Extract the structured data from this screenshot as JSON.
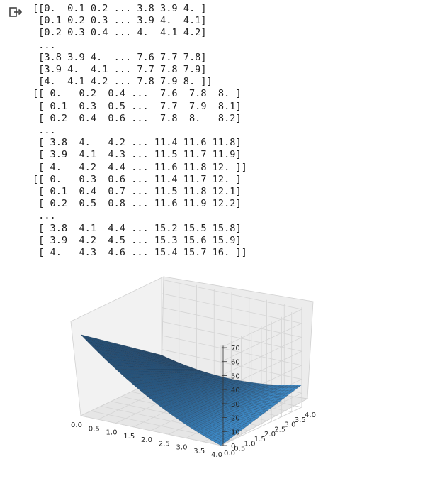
{
  "output": {
    "icon": "output-arrow-icon",
    "text": "[[0.  0.1 0.2 ... 3.8 3.9 4. ]\n [0.1 0.2 0.3 ... 3.9 4.  4.1]\n [0.2 0.3 0.4 ... 4.  4.1 4.2]\n ...\n [3.8 3.9 4.  ... 7.6 7.7 7.8]\n [3.9 4.  4.1 ... 7.7 7.8 7.9]\n [4.  4.1 4.2 ... 7.8 7.9 8. ]]\n[[ 0.   0.2  0.4 ...  7.6  7.8  8. ]\n [ 0.1  0.3  0.5 ...  7.7  7.9  8.1]\n [ 0.2  0.4  0.6 ...  7.8  8.   8.2]\n ...\n [ 3.8  4.   4.2 ... 11.4 11.6 11.8]\n [ 3.9  4.1  4.3 ... 11.5 11.7 11.9]\n [ 4.   4.2  4.4 ... 11.6 11.8 12. ]]\n[[ 0.   0.3  0.6 ... 11.4 11.7 12. ]\n [ 0.1  0.4  0.7 ... 11.5 11.8 12.1]\n [ 0.2  0.5  0.8 ... 11.6 11.9 12.2]\n ...\n [ 3.8  4.1  4.4 ... 15.2 15.5 15.8]\n [ 3.9  4.2  4.5 ... 15.3 15.6 15.9]\n [ 4.   4.3  4.6 ... 15.4 15.7 16. ]]"
  },
  "chart_data": {
    "type": "surface",
    "title": "",
    "xlabel": "",
    "ylabel": "",
    "zlabel": "",
    "xlim": [
      0,
      4
    ],
    "ylim": [
      0,
      4
    ],
    "zlim": [
      0,
      70
    ],
    "x_ticks": [
      "0.0",
      "0.5",
      "1.0",
      "1.5",
      "2.0",
      "2.5",
      "3.0",
      "3.5",
      "4.0"
    ],
    "y_ticks": [
      "0.0",
      "0.5",
      "1.0",
      "1.5",
      "2.0",
      "2.5",
      "3.0",
      "3.5",
      "4.0"
    ],
    "z_ticks": [
      "0",
      "10",
      "20",
      "30",
      "40",
      "50",
      "60",
      "70"
    ],
    "grid": true,
    "surface_color": "#3d88c4",
    "edge_color": "#1a2e44",
    "corners": [
      {
        "x": 0,
        "y": 0,
        "z": 58
      },
      {
        "x": 0,
        "y": 4,
        "z": 16
      },
      {
        "x": 4,
        "y": 4,
        "z": 16
      },
      {
        "x": 4,
        "y": 0,
        "z": 0
      }
    ]
  }
}
